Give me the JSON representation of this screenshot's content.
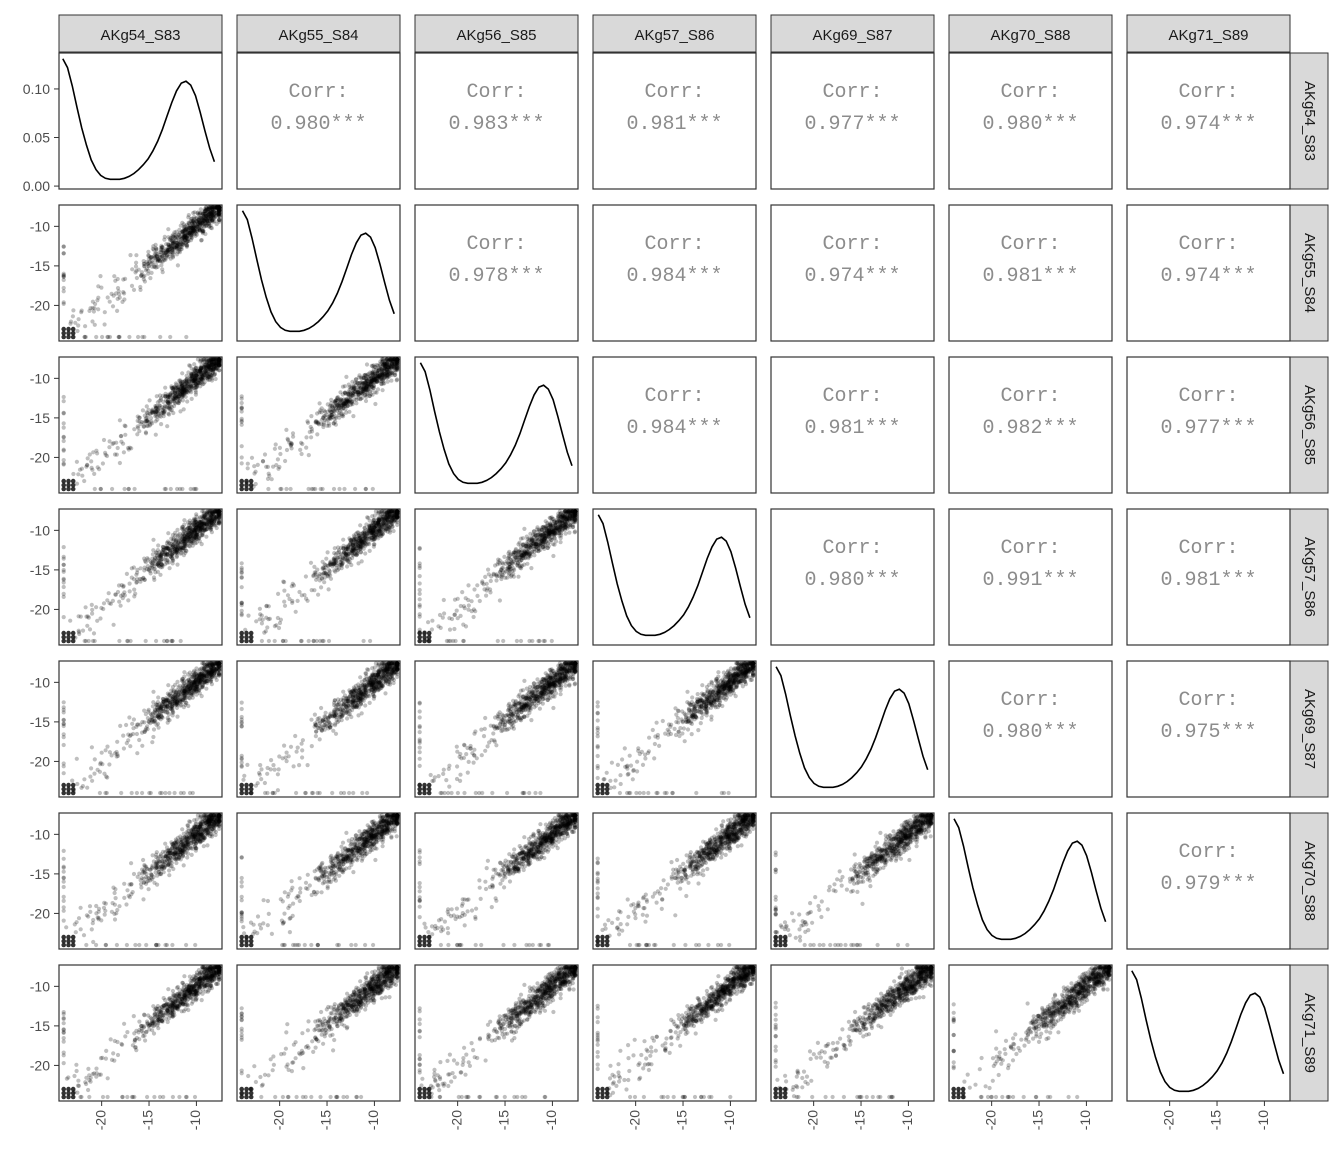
{
  "chart_data": {
    "type": "scatter-matrix",
    "variables": [
      "AKg54_S83",
      "AKg55_S84",
      "AKg56_S85",
      "AKg57_S86",
      "AKg69_S87",
      "AKg70_S88",
      "AKg71_S89"
    ],
    "corr_prefix": "Corr:",
    "correlations": [
      [
        "",
        "0.980***",
        "0.983***",
        "0.981***",
        "0.977***",
        "0.980***",
        "0.974***"
      ],
      [
        "",
        "",
        "0.978***",
        "0.984***",
        "0.974***",
        "0.981***",
        "0.974***"
      ],
      [
        "",
        "",
        "",
        "0.984***",
        "0.981***",
        "0.982***",
        "0.977***"
      ],
      [
        "",
        "",
        "",
        "",
        "0.980***",
        "0.991***",
        "0.981***"
      ],
      [
        "",
        "",
        "",
        "",
        "",
        "0.980***",
        "0.975***"
      ],
      [
        "",
        "",
        "",
        "",
        "",
        "",
        "0.979***"
      ],
      [
        "",
        "",
        "",
        "",
        "",
        "",
        ""
      ]
    ],
    "density_axis": {
      "ticks": [
        0.0,
        0.05,
        0.1
      ],
      "tick_labels": [
        "0.00",
        "0.05",
        "0.10"
      ],
      "range": [
        -0.003,
        0.137
      ]
    },
    "value_axis": {
      "ticks": [
        -20,
        -15,
        -10
      ],
      "tick_labels": [
        "-20",
        "-15",
        "-10"
      ],
      "range": [
        -24.5,
        -7.3
      ]
    },
    "density_curve": {
      "x": [
        -24,
        -23.5,
        -23,
        -22.5,
        -22,
        -21.5,
        -21,
        -20.5,
        -20,
        -19.5,
        -19,
        -18.5,
        -18,
        -17.5,
        -17,
        -16.5,
        -16,
        -15.5,
        -15,
        -14.5,
        -14,
        -13.5,
        -13,
        -12.5,
        -12,
        -11.5,
        -11,
        -10.5,
        -10,
        -9.5,
        -9,
        -8.5,
        -8
      ],
      "y": [
        0.131,
        0.122,
        0.103,
        0.081,
        0.06,
        0.042,
        0.027,
        0.017,
        0.011,
        0.008,
        0.007,
        0.007,
        0.007,
        0.008,
        0.01,
        0.013,
        0.017,
        0.022,
        0.028,
        0.036,
        0.046,
        0.058,
        0.072,
        0.086,
        0.098,
        0.106,
        0.108,
        0.104,
        0.093,
        0.076,
        0.057,
        0.039,
        0.025
      ]
    },
    "scatter": {
      "main_points_approx": 650,
      "low_value_cluster": [
        -24,
        -23.5,
        -23
      ],
      "point_alpha": 0.25
    }
  }
}
